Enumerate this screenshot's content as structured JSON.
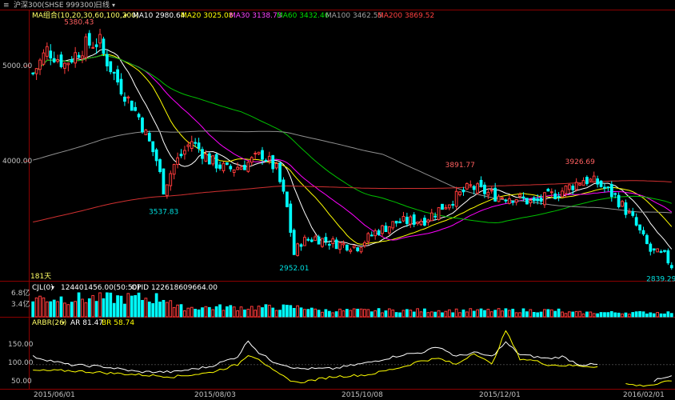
{
  "window": {
    "title": "沪深300(SHSE 999300)",
    "period": "日线"
  },
  "colors": {
    "up": "#ff3b3b",
    "down": "#00ffff",
    "grid": "#8b0000",
    "ma10": "#ffffff",
    "ma20": "#ffff00",
    "ma30": "#ff00ff",
    "ma60": "#00c000",
    "ma100": "#909090",
    "ma200": "#d03030",
    "arbr_ar": "#ffffff",
    "arbr_br": "#ffff00",
    "label": "#c0c0c0"
  },
  "header": {
    "ma_group": "MA组合(10,20,30,60,100,200)",
    "ma10": "MA10 2980.64",
    "ma20": "MA20 3025.08",
    "ma30": "MA30 3138.73",
    "ma60": "MA60 3432.46",
    "ma100": "MA100 3462.55",
    "ma200": "MA200 3869.52"
  },
  "volume_header": {
    "name": "CJL(0)",
    "vol": "124401456.00(50:50)",
    "opid": "OPID 122618609664.00"
  },
  "arbr_header": {
    "name": "ARBR(26)",
    "ar": "AR 81.47",
    "br": "BR 58.74"
  },
  "chart_data": {
    "type": "candlestick",
    "price_axis": {
      "ticks": [
        "5000.00",
        "4000.00"
      ],
      "ylim": [
        2750,
        5550
      ]
    },
    "volume_axis": {
      "ticks": [
        "6.8亿",
        "3.4亿"
      ]
    },
    "arbr_axis": {
      "ticks": [
        "150.00",
        "100.00",
        "50.00"
      ],
      "ylim": [
        40,
        195
      ]
    },
    "x_labels": [
      "2015/06/01",
      "2015/08/03",
      "2015/10/08",
      "2015/12/01",
      "2016/02/01"
    ],
    "days_label": "181天",
    "annotations": [
      {
        "text": "5380.43",
        "kind": "high"
      },
      {
        "text": "3537.83",
        "kind": "low"
      },
      {
        "text": "2952.01",
        "kind": "low"
      },
      {
        "text": "3891.77",
        "kind": "high"
      },
      {
        "text": "3926.69",
        "kind": "high"
      },
      {
        "text": "2839.29",
        "kind": "low"
      }
    ],
    "close_anchors": [
      [
        0,
        4900
      ],
      [
        4,
        5150
      ],
      [
        9,
        5000
      ],
      [
        15,
        5200
      ],
      [
        19,
        5230
      ],
      [
        20,
        5100
      ],
      [
        25,
        4750
      ],
      [
        30,
        4450
      ],
      [
        35,
        4000
      ],
      [
        37,
        3700
      ],
      [
        40,
        3950
      ],
      [
        45,
        4200
      ],
      [
        50,
        4000
      ],
      [
        55,
        3900
      ],
      [
        60,
        3950
      ],
      [
        65,
        4060
      ],
      [
        69,
        3900
      ],
      [
        72,
        3500
      ],
      [
        74,
        3020
      ],
      [
        76,
        3150
      ],
      [
        80,
        3190
      ],
      [
        86,
        3130
      ],
      [
        92,
        3100
      ],
      [
        97,
        3250
      ],
      [
        103,
        3350
      ],
      [
        111,
        3380
      ],
      [
        119,
        3590
      ],
      [
        124,
        3720
      ],
      [
        131,
        3630
      ],
      [
        137,
        3610
      ],
      [
        142,
        3550
      ],
      [
        145,
        3600
      ],
      [
        150,
        3680
      ],
      [
        156,
        3800
      ],
      [
        160,
        3760
      ],
      [
        165,
        3620
      ],
      [
        170,
        3380
      ],
      [
        175,
        3050
      ],
      [
        179,
        3000
      ],
      [
        181,
        2900
      ]
    ],
    "ar_anchors": [
      [
        0,
        120
      ],
      [
        5,
        110
      ],
      [
        10,
        100
      ],
      [
        20,
        95
      ],
      [
        30,
        82
      ],
      [
        40,
        82
      ],
      [
        50,
        95
      ],
      [
        58,
        120
      ],
      [
        61,
        160
      ],
      [
        64,
        130
      ],
      [
        68,
        108
      ],
      [
        75,
        90
      ],
      [
        85,
        90
      ],
      [
        95,
        105
      ],
      [
        105,
        125
      ],
      [
        110,
        130
      ],
      [
        115,
        145
      ],
      [
        120,
        120
      ],
      [
        125,
        130
      ],
      [
        130,
        120
      ],
      [
        134,
        155
      ],
      [
        138,
        125
      ],
      [
        142,
        120
      ],
      [
        146,
        115
      ],
      [
        150,
        120
      ],
      [
        155,
        100
      ],
      [
        160,
        100
      ]
    ],
    "br_anchors": [
      [
        0,
        85
      ],
      [
        10,
        85
      ],
      [
        20,
        80
      ],
      [
        30,
        75
      ],
      [
        40,
        70
      ],
      [
        50,
        80
      ],
      [
        58,
        100
      ],
      [
        61,
        125
      ],
      [
        64,
        115
      ],
      [
        68,
        85
      ],
      [
        72,
        65
      ],
      [
        75,
        55
      ],
      [
        85,
        70
      ],
      [
        95,
        75
      ],
      [
        105,
        95
      ],
      [
        110,
        110
      ],
      [
        115,
        115
      ],
      [
        120,
        100
      ],
      [
        125,
        130
      ],
      [
        130,
        100
      ],
      [
        134,
        185
      ],
      [
        138,
        115
      ],
      [
        142,
        110
      ],
      [
        146,
        100
      ],
      [
        150,
        98
      ],
      [
        155,
        97
      ],
      [
        160,
        95
      ]
    ],
    "br_tail_anchors": [
      [
        168,
        52
      ],
      [
        172,
        48
      ],
      [
        176,
        50
      ],
      [
        179,
        56
      ],
      [
        181,
        60
      ]
    ],
    "ar_tail_anchors": [
      [
        176,
        60
      ],
      [
        179,
        68
      ],
      [
        181,
        72
      ]
    ]
  }
}
